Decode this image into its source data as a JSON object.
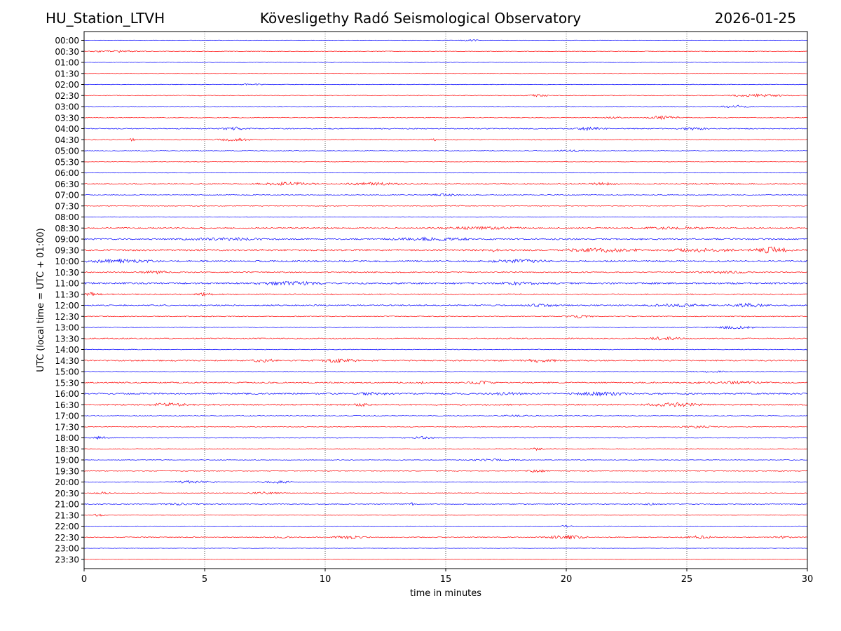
{
  "header": {
    "station": "HU_Station_LTVH",
    "observatory": "Kövesligethy Radó Seismological Observatory",
    "date": "2026-01-25"
  },
  "chart_data": {
    "type": "line",
    "title": "Kövesligethy Radó Seismological Observatory",
    "xlabel": "time in minutes",
    "ylabel": "UTC (local time = UTC + 01:00)",
    "xlim": [
      0,
      30
    ],
    "xticks": [
      "0",
      "5",
      "10",
      "15",
      "20",
      "25",
      "30"
    ],
    "grid": "vertical dotted at each x tick",
    "row_colors": [
      "#0000ff",
      "#ff0000"
    ],
    "rows": [
      "00:00",
      "00:30",
      "01:00",
      "01:30",
      "02:00",
      "02:30",
      "03:00",
      "03:30",
      "04:00",
      "04:30",
      "05:00",
      "05:30",
      "06:00",
      "06:30",
      "07:00",
      "07:30",
      "08:00",
      "08:30",
      "09:00",
      "09:30",
      "10:00",
      "10:30",
      "11:00",
      "11:30",
      "12:00",
      "12:30",
      "13:00",
      "13:30",
      "14:00",
      "14:30",
      "15:00",
      "15:30",
      "16:00",
      "16:30",
      "17:00",
      "17:30",
      "18:00",
      "18:30",
      "19:00",
      "19:30",
      "20:00",
      "20:30",
      "21:00",
      "21:30",
      "22:00",
      "22:30",
      "23:00",
      "23:30"
    ],
    "noise_level": [
      0.3,
      0.4,
      0.3,
      0.3,
      0.4,
      0.5,
      0.5,
      0.5,
      0.7,
      0.6,
      0.5,
      0.3,
      0.3,
      0.8,
      0.5,
      0.5,
      0.4,
      0.9,
      1.0,
      1.2,
      1.1,
      0.8,
      1.2,
      0.8,
      0.9,
      0.6,
      0.5,
      0.8,
      0.5,
      0.9,
      0.4,
      0.9,
      1.0,
      1.0,
      0.5,
      0.5,
      0.5,
      0.4,
      0.4,
      0.5,
      0.5,
      0.4,
      0.5,
      0.3,
      0.3,
      0.6,
      0.3,
      0.2
    ],
    "events": [
      [
        [
          16.0,
          0.5,
          1.2
        ]
      ],
      [
        [
          1.5,
          1.5,
          1.4
        ]
      ],
      [],
      [],
      [
        [
          7.0,
          0.6,
          1.2
        ]
      ],
      [
        [
          18.8,
          0.6,
          1.5
        ],
        [
          28.0,
          1.5,
          1.6
        ]
      ],
      [
        [
          27.0,
          0.8,
          1.8
        ]
      ],
      [
        [
          24.0,
          1.0,
          2.0
        ],
        [
          22.0,
          0.6,
          1.0
        ]
      ],
      [
        [
          6.3,
          0.8,
          1.8
        ],
        [
          21.0,
          0.8,
          2.2
        ],
        [
          25.3,
          0.8,
          1.6
        ]
      ],
      [
        [
          6.2,
          1.0,
          1.8
        ],
        [
          2.0,
          0.2,
          1.5
        ],
        [
          14.5,
          0.2,
          1.5
        ]
      ],
      [
        [
          20.2,
          0.7,
          1.6
        ]
      ],
      [],
      [],
      [
        [
          8.5,
          1.5,
          2.0
        ],
        [
          12.0,
          1.5,
          1.6
        ],
        [
          21.5,
          0.8,
          1.6
        ]
      ],
      [
        [
          15.0,
          0.8,
          1.6
        ]
      ],
      [
        [
          15.5,
          0.3,
          1.0
        ]
      ],
      [],
      [
        [
          16.5,
          3.0,
          1.4
        ],
        [
          24.5,
          2.0,
          1.4
        ]
      ],
      [
        [
          6.0,
          2.5,
          1.4
        ],
        [
          14.5,
          2.5,
          1.6
        ]
      ],
      [
        [
          21.5,
          2.0,
          2.0
        ],
        [
          25.5,
          2.0,
          1.6
        ],
        [
          28.5,
          1.0,
          4.0
        ],
        [
          17.0,
          0.2,
          2.0
        ]
      ],
      [
        [
          1.5,
          2.0,
          1.8
        ],
        [
          18.0,
          1.5,
          1.8
        ]
      ],
      [
        [
          3.0,
          0.8,
          1.8
        ],
        [
          26.5,
          1.5,
          1.4
        ]
      ],
      [
        [
          8.5,
          2.0,
          1.8
        ],
        [
          18.0,
          1.0,
          1.4
        ]
      ],
      [
        [
          0.3,
          0.5,
          2.0
        ],
        [
          5.0,
          0.5,
          1.6
        ]
      ],
      [
        [
          19.0,
          1.0,
          1.8
        ],
        [
          24.5,
          1.5,
          2.0
        ],
        [
          27.5,
          1.0,
          2.4
        ]
      ],
      [
        [
          20.5,
          0.8,
          1.6
        ]
      ],
      [
        [
          27.0,
          1.5,
          1.6
        ]
      ],
      [
        [
          24.0,
          1.0,
          2.0
        ]
      ],
      [],
      [
        [
          7.5,
          0.8,
          1.8
        ],
        [
          10.5,
          1.2,
          2.0
        ],
        [
          19.0,
          1.0,
          2.2
        ]
      ],
      [
        [
          26.0,
          1.0,
          1.0
        ]
      ],
      [
        [
          16.5,
          0.8,
          1.8
        ],
        [
          14.0,
          0.2,
          1.5
        ],
        [
          27.0,
          2.0,
          1.4
        ]
      ],
      [
        [
          21.5,
          1.5,
          2.4
        ],
        [
          17.5,
          1.0,
          1.4
        ],
        [
          12.0,
          1.0,
          1.4
        ]
      ],
      [
        [
          3.5,
          1.0,
          2.0
        ],
        [
          24.5,
          1.5,
          2.2
        ],
        [
          11.5,
          0.6,
          1.4
        ]
      ],
      [
        [
          18.0,
          1.0,
          1.2
        ]
      ],
      [
        [
          25.5,
          1.0,
          1.4
        ]
      ],
      [
        [
          0.7,
          0.6,
          1.8
        ],
        [
          14.0,
          0.8,
          1.6
        ]
      ],
      [
        [
          18.8,
          0.4,
          1.8
        ]
      ],
      [
        [
          17.0,
          1.5,
          1.2
        ]
      ],
      [
        [
          18.8,
          0.5,
          2.0
        ]
      ],
      [
        [
          4.5,
          1.2,
          1.8
        ],
        [
          8.0,
          1.0,
          1.6
        ]
      ],
      [
        [
          7.5,
          1.0,
          1.4
        ],
        [
          0.7,
          0.6,
          1.4
        ]
      ],
      [
        [
          13.6,
          0.1,
          3.0
        ],
        [
          4.0,
          1.0,
          1.4
        ],
        [
          23.5,
          0.5,
          1.2
        ]
      ],
      [
        [
          0.6,
          0.3,
          2.0
        ]
      ],
      [
        [
          20.0,
          0.3,
          1.6
        ]
      ],
      [
        [
          20.0,
          1.2,
          2.6
        ],
        [
          11.0,
          1.0,
          2.0
        ],
        [
          25.5,
          0.8,
          2.0
        ],
        [
          29.0,
          0.5,
          1.6
        ],
        [
          8.2,
          0.5,
          1.2
        ]
      ],
      [],
      []
    ]
  }
}
